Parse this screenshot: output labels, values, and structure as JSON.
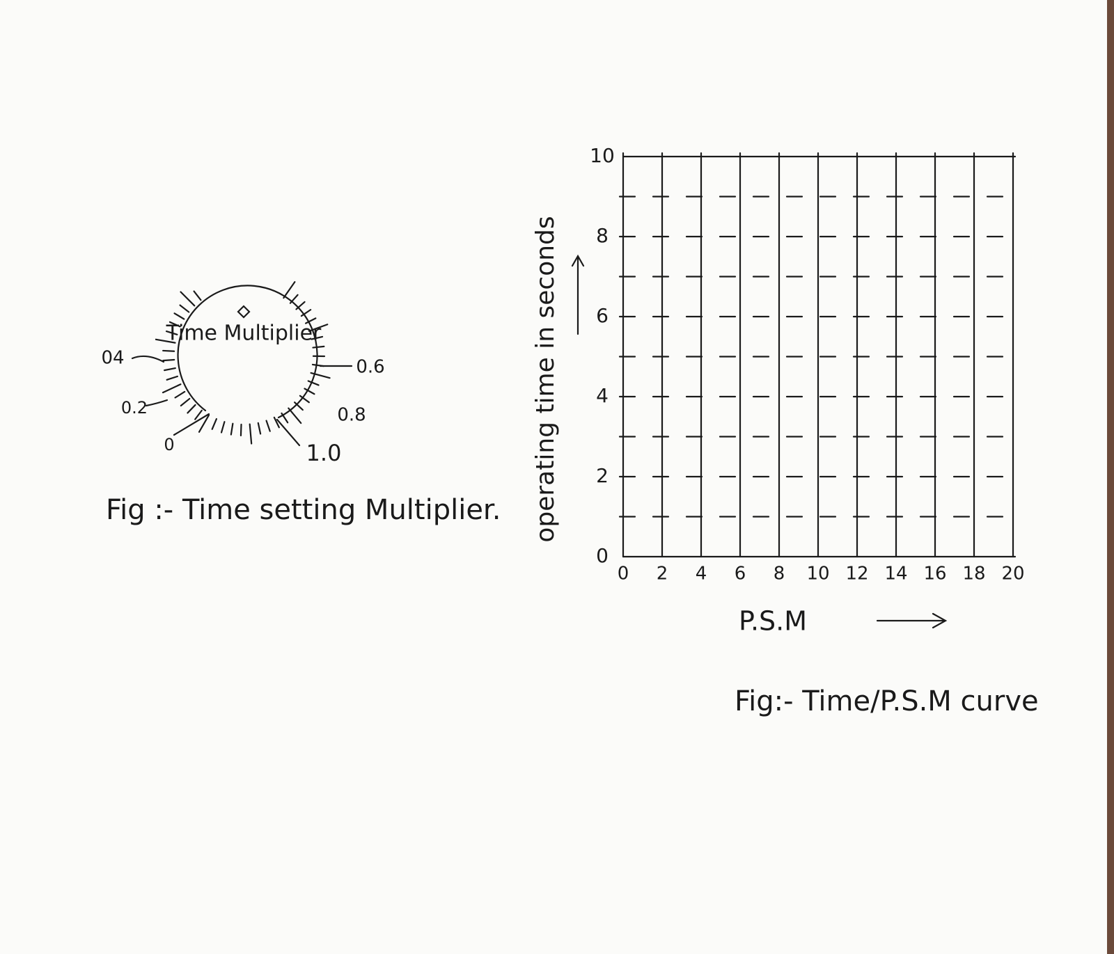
{
  "dial": {
    "center_label": "Time Multiplier",
    "labels": [
      "0",
      "0.2",
      "04",
      "0.6",
      "0.8",
      "1.0"
    ],
    "caption": "Fig :- Time setting Multiplier."
  },
  "graph": {
    "y_axis_label": "operating time in seconds",
    "x_axis_label": "P.S.M",
    "yticks": [
      0,
      2,
      4,
      6,
      8,
      10
    ],
    "xticks": [
      0,
      2,
      4,
      6,
      8,
      10,
      12,
      14,
      16,
      18,
      20
    ],
    "caption": "Fig:- Time/P.S.M curve"
  }
}
